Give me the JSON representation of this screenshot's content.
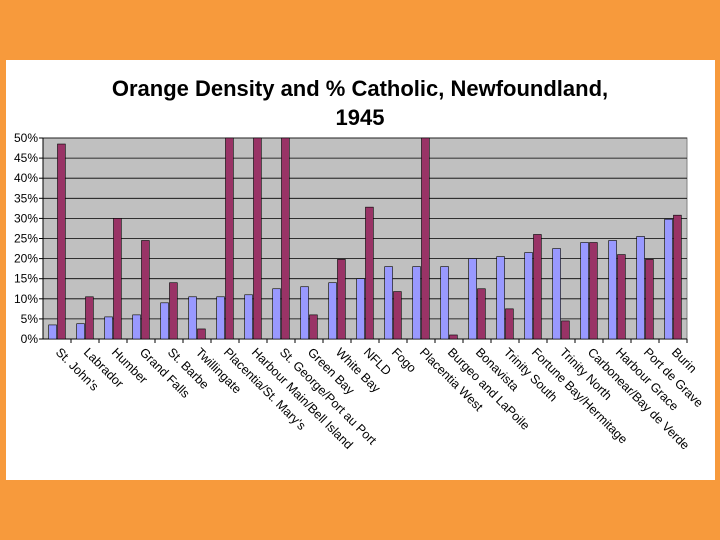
{
  "slide": {
    "background": "#F79A3C",
    "panel": "#FFFFFF"
  },
  "chart_data": {
    "type": "bar",
    "title": "Orange Density and % Catholic, Newfoundland, 1945",
    "title_lines": [
      "Orange Density and % Catholic, Newfoundland,",
      "1945"
    ],
    "xlabel": "",
    "ylabel": "",
    "ylim": [
      0,
      50
    ],
    "yticks": [
      0,
      5,
      10,
      15,
      20,
      25,
      30,
      35,
      40,
      45,
      50
    ],
    "ytick_labels": [
      "0%",
      "5%",
      "10%",
      "15%",
      "20%",
      "25%",
      "30%",
      "35%",
      "40%",
      "45%",
      "50%"
    ],
    "grid": true,
    "legend": "none",
    "plot_background": "#C0C0C0",
    "categories": [
      "St. John's",
      "Labrador",
      "Humber",
      "Grand Falls",
      "St. Barbe",
      "Twillingate",
      "Placentia/St. Mary's",
      "Harbour Main/Bell Island",
      "St. George/Port au Port",
      "Green Bay",
      "White Bay",
      "NFLD",
      "Fogo",
      "Placentia West",
      "Burgeo and LaPoile",
      "Bonavista",
      "Trinity South",
      "Fortune Bay/Hermitage",
      "Trinity North",
      "Carbonear/Bay de Verde",
      "Harbour Grace",
      "Port de Grave",
      "Burin"
    ],
    "series": [
      {
        "name": "Orange Density",
        "color": "#9999FF",
        "values": [
          3.5,
          3.8,
          5.5,
          6,
          9,
          10.5,
          10.5,
          11,
          12.5,
          13,
          14,
          15,
          18,
          18,
          18,
          20,
          20.5,
          21.5,
          22.5,
          24,
          24.5,
          25.5,
          29.8
        ]
      },
      {
        "name": "% Catholic",
        "color": "#993366",
        "values": [
          48.5,
          10.5,
          30,
          24.5,
          14,
          2.5,
          50,
          50,
          50,
          6,
          19.8,
          32.8,
          11.8,
          50,
          1,
          12.5,
          7.5,
          26,
          4.5,
          24,
          21,
          19.8,
          30.8
        ]
      }
    ]
  }
}
